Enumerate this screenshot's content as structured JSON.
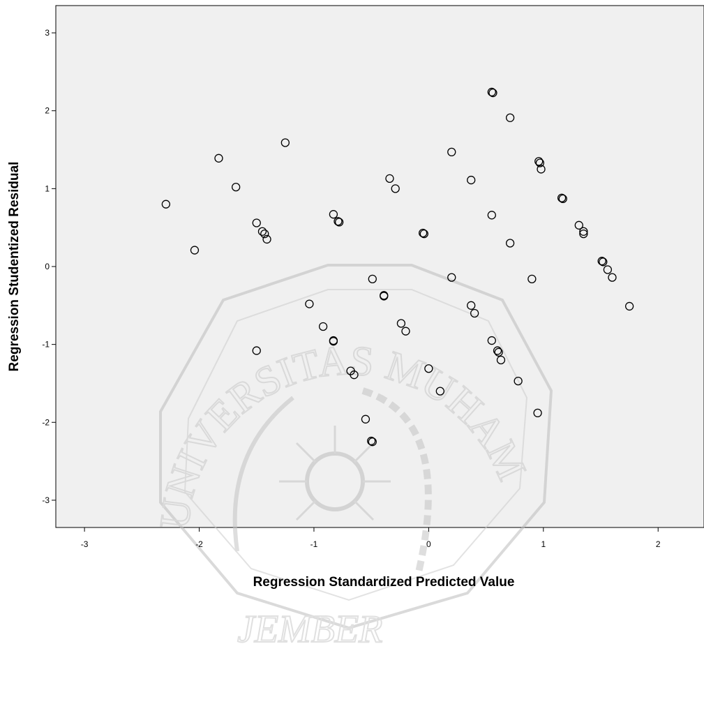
{
  "chart_data": {
    "type": "scatter",
    "title": "",
    "xlabel": "Regression Standardized Predicted Value",
    "ylabel": "Regression Studentized Residual",
    "xlim": [
      -3.25,
      2.4
    ],
    "ylim": [
      -3.35,
      3.35
    ],
    "xticks": [
      -3,
      -2,
      -1,
      0,
      1,
      2
    ],
    "yticks": [
      -3,
      -2,
      -1,
      0,
      1,
      2,
      3
    ],
    "grid": false,
    "legend": "none",
    "colors": {
      "plot_background": "#f0f0f0",
      "marker_stroke": "#000000",
      "watermark": "#c8c8c8"
    },
    "points": [
      {
        "x": -2.29,
        "y": 0.8
      },
      {
        "x": -2.04,
        "y": 0.21
      },
      {
        "x": -1.83,
        "y": 1.39
      },
      {
        "x": -1.68,
        "y": 1.02
      },
      {
        "x": -1.25,
        "y": 1.59
      },
      {
        "x": -1.5,
        "y": 0.56
      },
      {
        "x": -1.45,
        "y": 0.45
      },
      {
        "x": -1.43,
        "y": 0.42
      },
      {
        "x": -1.41,
        "y": 0.35
      },
      {
        "x": -1.5,
        "y": -1.08
      },
      {
        "x": -1.04,
        "y": -0.48
      },
      {
        "x": -0.92,
        "y": -0.77
      },
      {
        "x": -0.83,
        "y": -0.95
      },
      {
        "x": -0.83,
        "y": -0.96
      },
      {
        "x": -0.83,
        "y": 0.67
      },
      {
        "x": -0.79,
        "y": 0.58
      },
      {
        "x": -0.78,
        "y": 0.57
      },
      {
        "x": -0.68,
        "y": -1.34
      },
      {
        "x": -0.65,
        "y": -1.39
      },
      {
        "x": -0.55,
        "y": -1.96
      },
      {
        "x": -0.5,
        "y": -2.24
      },
      {
        "x": -0.49,
        "y": -2.25
      },
      {
        "x": -0.49,
        "y": -0.16
      },
      {
        "x": -0.39,
        "y": -0.37
      },
      {
        "x": -0.39,
        "y": -0.38
      },
      {
        "x": -0.34,
        "y": 1.13
      },
      {
        "x": -0.29,
        "y": 1.0
      },
      {
        "x": -0.24,
        "y": -0.73
      },
      {
        "x": -0.2,
        "y": -0.83
      },
      {
        "x": -0.05,
        "y": 0.43
      },
      {
        "x": -0.04,
        "y": 0.42
      },
      {
        "x": 0.0,
        "y": -1.31
      },
      {
        "x": 0.1,
        "y": -1.6
      },
      {
        "x": 0.2,
        "y": 1.47
      },
      {
        "x": 0.2,
        "y": -0.14
      },
      {
        "x": 0.37,
        "y": 1.11
      },
      {
        "x": 0.37,
        "y": -0.5
      },
      {
        "x": 0.4,
        "y": -0.6
      },
      {
        "x": 0.55,
        "y": 2.24
      },
      {
        "x": 0.56,
        "y": 2.23
      },
      {
        "x": 0.71,
        "y": 1.91
      },
      {
        "x": 0.55,
        "y": 0.66
      },
      {
        "x": 0.71,
        "y": 0.3
      },
      {
        "x": 0.55,
        "y": -0.95
      },
      {
        "x": 0.6,
        "y": -1.08
      },
      {
        "x": 0.61,
        "y": -1.1
      },
      {
        "x": 0.63,
        "y": -1.2
      },
      {
        "x": 0.78,
        "y": -1.47
      },
      {
        "x": 0.9,
        "y": -0.16
      },
      {
        "x": 0.95,
        "y": -1.88
      },
      {
        "x": 0.96,
        "y": 1.35
      },
      {
        "x": 0.97,
        "y": 1.33
      },
      {
        "x": 0.98,
        "y": 1.25
      },
      {
        "x": 1.16,
        "y": 0.88
      },
      {
        "x": 1.17,
        "y": 0.87
      },
      {
        "x": 1.31,
        "y": 0.53
      },
      {
        "x": 1.35,
        "y": 0.45
      },
      {
        "x": 1.35,
        "y": 0.42
      },
      {
        "x": 1.51,
        "y": 0.07
      },
      {
        "x": 1.52,
        "y": 0.06
      },
      {
        "x": 1.56,
        "y": -0.04
      },
      {
        "x": 1.6,
        "y": -0.14
      },
      {
        "x": 1.75,
        "y": -0.51
      }
    ]
  },
  "watermark": {
    "arc_text": "UNIVERSITAS MUHAMMADIYAH",
    "bottom_text": "JEMBER"
  }
}
